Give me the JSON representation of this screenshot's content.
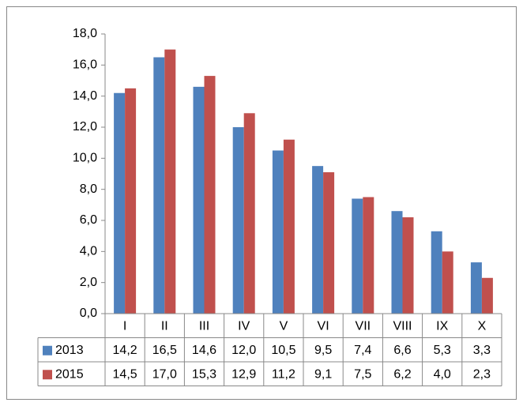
{
  "chart_data": {
    "type": "bar",
    "categories": [
      "I",
      "II",
      "III",
      "IV",
      "V",
      "VI",
      "VII",
      "VIII",
      "IX",
      "X"
    ],
    "series": [
      {
        "name": "2013",
        "color": "#4f81bd",
        "values": [
          14.2,
          16.5,
          14.6,
          12.0,
          10.5,
          9.5,
          7.4,
          6.6,
          5.3,
          3.3
        ],
        "value_labels": [
          "14,2",
          "16,5",
          "14,6",
          "12,0",
          "10,5",
          "9,5",
          "7,4",
          "6,6",
          "5,3",
          "3,3"
        ]
      },
      {
        "name": "2015",
        "color": "#c0504d",
        "values": [
          14.5,
          17.0,
          15.3,
          12.9,
          11.2,
          9.1,
          7.5,
          6.2,
          4.0,
          2.3
        ],
        "value_labels": [
          "14,5",
          "17,0",
          "15,3",
          "12,9",
          "11,2",
          "9,1",
          "7,5",
          "6,2",
          "4,0",
          "2,3"
        ]
      }
    ],
    "ylim": [
      0,
      18
    ],
    "yticks": [
      {
        "value": 0,
        "label": "0,0"
      },
      {
        "value": 2,
        "label": "2,0"
      },
      {
        "value": 4,
        "label": "4,0"
      },
      {
        "value": 6,
        "label": "6,0"
      },
      {
        "value": 8,
        "label": "8,0"
      },
      {
        "value": 10,
        "label": "10,0"
      },
      {
        "value": 12,
        "label": "12,0"
      },
      {
        "value": 14,
        "label": "14,0"
      },
      {
        "value": 16,
        "label": "16,0"
      },
      {
        "value": 18,
        "label": "18,0"
      }
    ],
    "data_table": true
  }
}
